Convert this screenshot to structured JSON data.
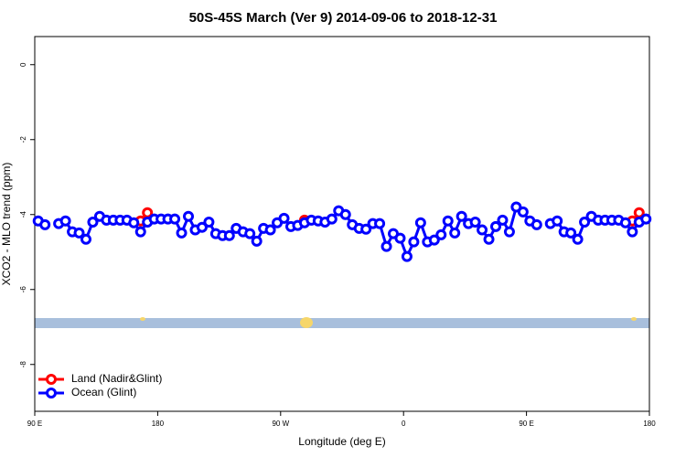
{
  "chart_data": {
    "type": "line",
    "title": "50S-45S March (Ver 9)   2014-09-06 to 2018-12-31",
    "x_label": "Longitude (deg E)",
    "y_label": "XCO2 - MLO trend (ppm)",
    "xlim": [
      90,
      540
    ],
    "ylim": [
      -9.25,
      0.75
    ],
    "xticks": [
      {
        "value": 90,
        "label": "90 E"
      },
      180,
      {
        "value": 270,
        "label": "90 W"
      },
      {
        "value": 360,
        "label": "0"
      },
      {
        "value": 450,
        "label": "90 E"
      },
      {
        "value": 540,
        "label": "180"
      }
    ],
    "yticks": [
      0,
      -2,
      -4,
      -6,
      -8
    ],
    "legend": "bottomleft",
    "series": [
      {
        "name": "Land (Nadir&Glint)",
        "color": "#ff0000",
        "x": [
          167.5,
          172.5,
          282.5,
          287.5,
          292.5,
          527.5,
          532.5
        ],
        "values": [
          -4.17,
          -3.95,
          null,
          -4.15,
          null,
          -4.17,
          -3.95
        ]
      },
      {
        "name": "Ocean (Glint)",
        "color": "#0000ff",
        "x": [
          92.5,
          97.5,
          102.5,
          107.5,
          112.5,
          117.5,
          122.5,
          127.5,
          132.5,
          137.5,
          142.5,
          147.5,
          152.5,
          157.5,
          162.5,
          167.5,
          172.5,
          177.5,
          182.5,
          187.5,
          192.5,
          197.5,
          202.5,
          207.5,
          212.5,
          217.5,
          222.5,
          227.5,
          232.5,
          237.5,
          242.5,
          247.5,
          252.5,
          257.5,
          262.5,
          267.5,
          272.5,
          277.5,
          282.5,
          287.5,
          292.5,
          297.5,
          302.5,
          307.5,
          312.5,
          317.5,
          322.5,
          327.5,
          332.5,
          337.5,
          342.5,
          347.5,
          352.5,
          357.5,
          362.5,
          367.5,
          372.5,
          377.5,
          382.5,
          387.5,
          392.5,
          397.5,
          402.5,
          407.5,
          412.5,
          417.5,
          422.5,
          427.5,
          432.5,
          437.5,
          442.5,
          447.5,
          452.5,
          457.5,
          462.5,
          467.5,
          472.5,
          477.5,
          482.5,
          487.5,
          492.5,
          497.5,
          502.5,
          507.5,
          512.5,
          517.5,
          522.5,
          527.5,
          532.5,
          537.5
        ],
        "values": [
          -4.17,
          -4.27,
          null,
          -4.24,
          -4.17,
          -4.46,
          -4.49,
          -4.66,
          -4.2,
          -4.05,
          -4.15,
          -4.15,
          -4.15,
          -4.15,
          -4.22,
          -4.46,
          -4.2,
          -4.12,
          -4.12,
          -4.12,
          -4.12,
          -4.49,
          -4.05,
          -4.41,
          -4.34,
          -4.2,
          -4.51,
          -4.56,
          -4.56,
          -4.37,
          -4.46,
          -4.51,
          -4.71,
          -4.37,
          -4.41,
          -4.22,
          -4.1,
          -4.32,
          -4.29,
          -4.22,
          -4.15,
          -4.17,
          -4.2,
          -4.12,
          -3.9,
          -4.0,
          -4.27,
          -4.37,
          -4.39,
          -4.24,
          -4.24,
          -4.85,
          -4.51,
          -4.63,
          -5.12,
          -4.73,
          -4.22,
          -4.73,
          -4.68,
          -4.54,
          -4.17,
          -4.49,
          -4.05,
          -4.24,
          -4.2,
          -4.41,
          -4.66,
          -4.32,
          -4.15,
          -4.46,
          -3.8,
          -3.93,
          -4.17,
          -4.27,
          null,
          -4.24,
          -4.17,
          -4.46,
          -4.49,
          -4.66,
          -4.2,
          -4.05,
          -4.15,
          -4.15,
          -4.15,
          -4.15,
          -4.22,
          -4.46,
          -4.2,
          -4.12
        ]
      }
    ]
  }
}
